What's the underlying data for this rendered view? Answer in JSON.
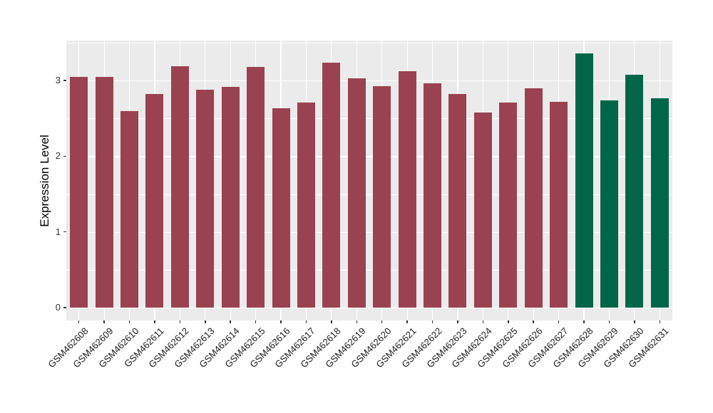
{
  "chart_data": {
    "type": "bar",
    "title": "",
    "xlabel": "",
    "ylabel": "Expression Level",
    "categories": [
      "GSM462608",
      "GSM462609",
      "GSM462610",
      "GSM462611",
      "GSM462612",
      "GSM462613",
      "GSM462614",
      "GSM462615",
      "GSM462616",
      "GSM462617",
      "GSM462618",
      "GSM462619",
      "GSM462620",
      "GSM462621",
      "GSM462622",
      "GSM462623",
      "GSM462624",
      "GSM462625",
      "GSM462626",
      "GSM462627",
      "GSM462628",
      "GSM462629",
      "GSM462630",
      "GSM462631"
    ],
    "values": [
      3.05,
      3.05,
      2.6,
      2.82,
      3.19,
      2.88,
      2.92,
      3.18,
      2.63,
      2.71,
      3.24,
      3.03,
      2.93,
      3.12,
      2.96,
      2.82,
      2.58,
      2.71,
      2.9,
      2.72,
      3.36,
      2.74,
      3.08,
      2.77
    ],
    "bar_colors": [
      "#9a4252",
      "#9a4252",
      "#9a4252",
      "#9a4252",
      "#9a4252",
      "#9a4252",
      "#9a4252",
      "#9a4252",
      "#9a4252",
      "#9a4252",
      "#9a4252",
      "#9a4252",
      "#9a4252",
      "#9a4252",
      "#9a4252",
      "#9a4252",
      "#9a4252",
      "#9a4252",
      "#9a4252",
      "#9a4252",
      "#006647",
      "#006647",
      "#006647",
      "#006647"
    ],
    "group_colors": {
      "first_20_samples": "#9a4252",
      "last_4_samples": "#006647"
    },
    "ylim": [
      -0.17,
      3.53
    ],
    "y_ticks": [
      0,
      1,
      2,
      3
    ],
    "y_minor_gridlines": [
      0.5,
      1.5,
      2.5,
      3.5
    ],
    "x_tick_rotation_deg": 45,
    "grid": true,
    "legend_position": "none",
    "panel_background": "#ebebeb",
    "gridline_color": "#ffffff"
  }
}
